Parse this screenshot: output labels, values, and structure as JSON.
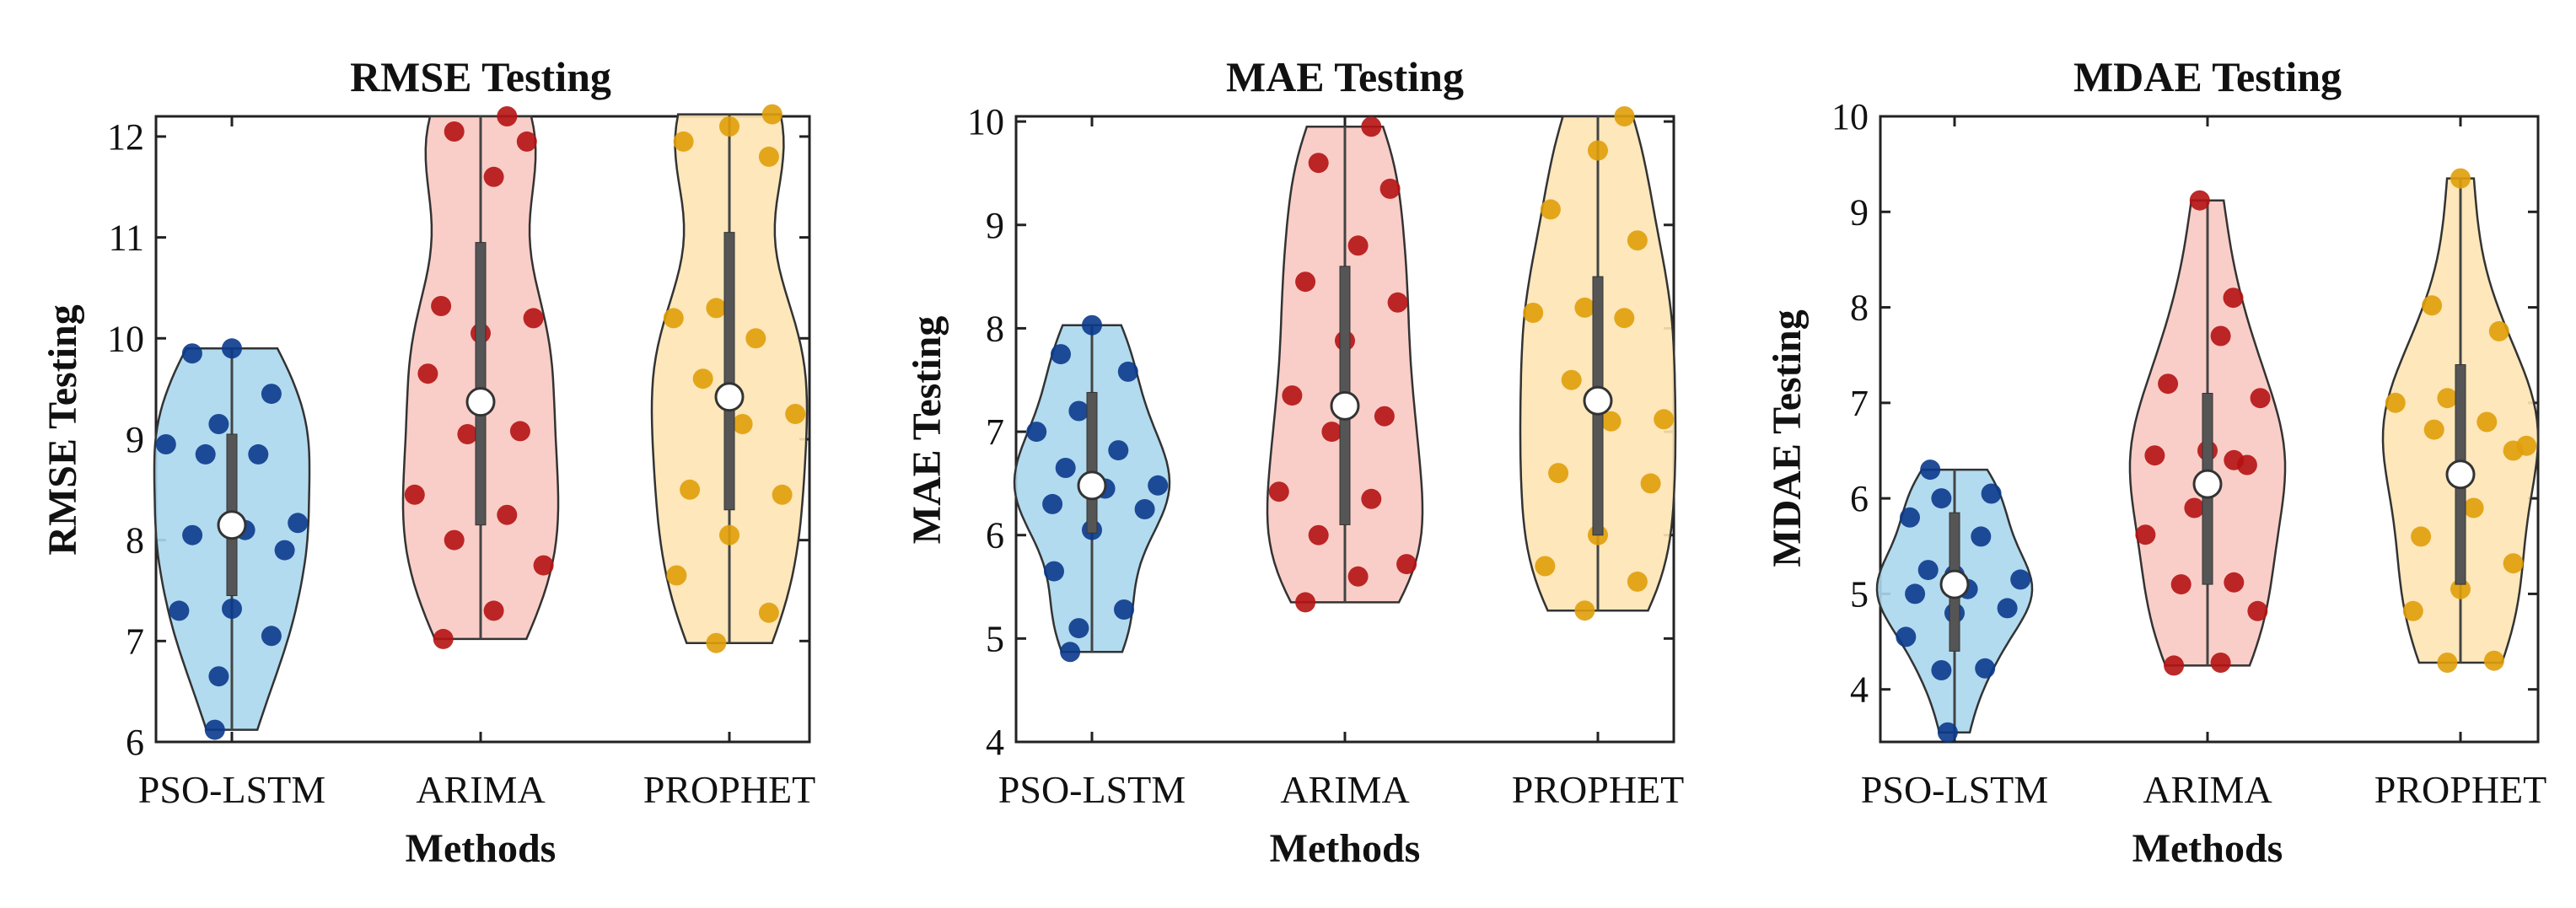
{
  "figure": {
    "background": "#ffffff"
  },
  "chart_data": [
    {
      "type": "violin",
      "title": "RMSE Testing",
      "xlabel": "Methods",
      "ylabel": "RMSE Testing",
      "ylim": [
        6,
        12.2
      ],
      "yticks": [
        6,
        7,
        8,
        9,
        10,
        11,
        12
      ],
      "categories": [
        "PSO-LSTM",
        "ARIMA",
        "PROPHET"
      ],
      "series": [
        {
          "category": "PSO-LSTM",
          "fill": "#aad7ee",
          "point_color": "#0b3a8c",
          "median": 8.15,
          "q1": 7.45,
          "q3": 9.05,
          "min": 6.12,
          "max": 9.9,
          "points": [
            6.12,
            6.65,
            7.05,
            7.3,
            7.32,
            7.9,
            8.05,
            8.1,
            8.17,
            8.85,
            8.85,
            8.95,
            9.15,
            9.45,
            9.85,
            9.9
          ]
        },
        {
          "category": "ARIMA",
          "fill": "#f9c9c2",
          "point_color": "#b51313",
          "median": 9.37,
          "q1": 8.15,
          "q3": 10.95,
          "min": 7.02,
          "max": 12.2,
          "points": [
            7.02,
            7.3,
            7.75,
            8.0,
            8.25,
            8.45,
            9.05,
            9.08,
            9.65,
            10.05,
            10.2,
            10.32,
            11.6,
            11.95,
            12.05,
            12.2
          ]
        },
        {
          "category": "PROPHET",
          "fill": "#fde4b4",
          "point_color": "#e09f0a",
          "median": 9.42,
          "q1": 8.3,
          "q3": 11.05,
          "min": 6.98,
          "max": 12.22,
          "points": [
            6.98,
            7.28,
            7.65,
            8.05,
            8.45,
            8.5,
            9.15,
            9.25,
            9.6,
            10.0,
            10.2,
            10.3,
            11.8,
            11.95,
            12.1,
            12.22
          ]
        }
      ]
    },
    {
      "type": "violin",
      "title": "MAE Testing",
      "xlabel": "Methods",
      "ylabel": "MAE Testing",
      "ylim": [
        4,
        10.05
      ],
      "yticks": [
        4,
        5,
        6,
        7,
        8,
        9,
        10
      ],
      "categories": [
        "PSO-LSTM",
        "ARIMA",
        "PROPHET"
      ],
      "series": [
        {
          "category": "PSO-LSTM",
          "fill": "#aad7ee",
          "point_color": "#0b3a8c",
          "median": 6.48,
          "q1": 6.02,
          "q3": 7.38,
          "min": 4.87,
          "max": 8.03,
          "points": [
            4.87,
            5.1,
            5.28,
            5.65,
            6.05,
            6.25,
            6.3,
            6.45,
            6.48,
            6.65,
            6.82,
            7.0,
            7.2,
            7.58,
            7.75,
            8.03
          ]
        },
        {
          "category": "ARIMA",
          "fill": "#f9c9c2",
          "point_color": "#b51313",
          "median": 7.25,
          "q1": 6.1,
          "q3": 8.6,
          "min": 5.35,
          "max": 9.95,
          "points": [
            5.35,
            5.6,
            5.72,
            6.0,
            6.35,
            6.42,
            7.0,
            7.15,
            7.35,
            7.88,
            8.25,
            8.45,
            8.8,
            9.35,
            9.6,
            9.95
          ]
        },
        {
          "category": "PROPHET",
          "fill": "#fde4b4",
          "point_color": "#e09f0a",
          "median": 7.3,
          "q1": 6.0,
          "q3": 8.5,
          "min": 5.27,
          "max": 10.05,
          "points": [
            5.27,
            5.55,
            5.7,
            6.0,
            6.5,
            6.6,
            7.1,
            7.12,
            7.5,
            8.1,
            8.15,
            8.2,
            8.85,
            9.15,
            9.72,
            10.05
          ]
        }
      ]
    },
    {
      "type": "violin",
      "title": "MDAE Testing",
      "xlabel": "Methods",
      "ylabel": "MDAE Testing",
      "ylim": [
        3.45,
        10
      ],
      "yticks": [
        4,
        5,
        6,
        7,
        8,
        9,
        10
      ],
      "categories": [
        "PSO-LSTM",
        "ARIMA",
        "PROPHET"
      ],
      "series": [
        {
          "category": "PSO-LSTM",
          "fill": "#aad7ee",
          "point_color": "#0b3a8c",
          "median": 5.1,
          "q1": 4.4,
          "q3": 5.85,
          "min": 3.55,
          "max": 6.3,
          "points": [
            3.55,
            4.2,
            4.22,
            4.55,
            4.8,
            4.85,
            5.0,
            5.05,
            5.15,
            5.25,
            5.6,
            5.8,
            6.0,
            6.05,
            6.3,
            5.2
          ]
        },
        {
          "category": "ARIMA",
          "fill": "#f9c9c2",
          "point_color": "#b51313",
          "median": 6.15,
          "q1": 5.1,
          "q3": 7.1,
          "min": 4.25,
          "max": 9.12,
          "points": [
            4.25,
            4.28,
            4.82,
            5.1,
            5.12,
            5.62,
            5.9,
            6.35,
            6.45,
            6.5,
            7.05,
            7.2,
            7.7,
            8.1,
            9.12,
            6.4
          ]
        },
        {
          "category": "PROPHET",
          "fill": "#fde4b4",
          "point_color": "#e09f0a",
          "median": 6.25,
          "q1": 5.1,
          "q3": 7.4,
          "min": 4.28,
          "max": 9.35,
          "points": [
            4.28,
            4.3,
            4.82,
            5.05,
            5.32,
            5.6,
            5.9,
            6.55,
            6.72,
            6.8,
            7.0,
            7.05,
            7.75,
            8.02,
            9.35,
            6.5
          ]
        }
      ]
    }
  ]
}
